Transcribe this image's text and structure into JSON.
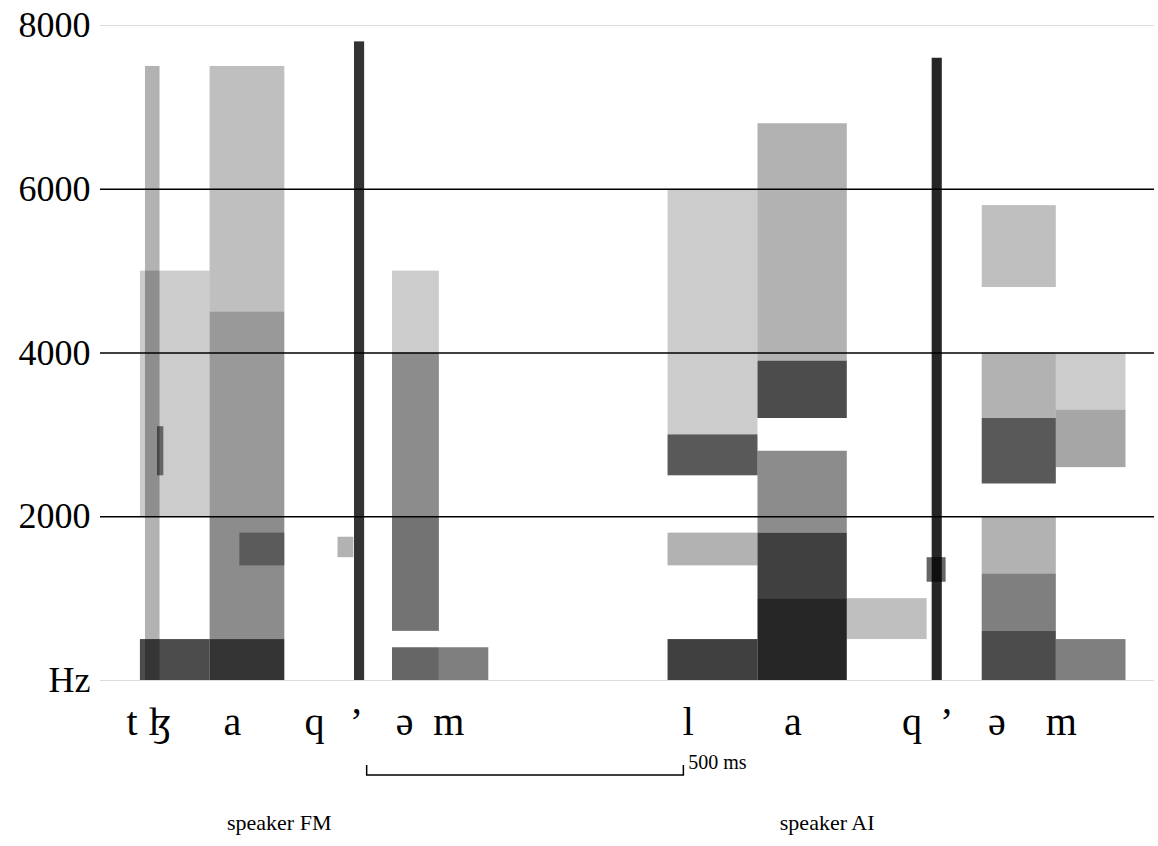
{
  "chart_data": {
    "type": "spectrogram",
    "color": "#000000",
    "xlim": [
      0,
      1664
    ],
    "ylim": [
      0,
      8000
    ],
    "yticks": [
      {
        "value": 0,
        "label": "Hz"
      },
      2000,
      4000,
      6000,
      8000
    ],
    "grid": true,
    "tick_labels": "y",
    "cells": [
      {
        "t0": 71,
        "t1": 94,
        "f0": 0,
        "f1": 7500,
        "level": 0.3
      },
      {
        "t0": 90,
        "t1": 100,
        "f0": 2500,
        "f1": 3100,
        "level": 0.5
      },
      {
        "t0": 63,
        "t1": 173,
        "f0": 0,
        "f1": 500,
        "level": 0.7
      },
      {
        "t0": 63,
        "t1": 173,
        "f0": 2000,
        "f1": 5000,
        "level": 0.2
      },
      {
        "t0": 173,
        "t1": 291,
        "f0": 0,
        "f1": 500,
        "level": 0.8
      },
      {
        "t0": 173,
        "t1": 291,
        "f0": 500,
        "f1": 2000,
        "level": 0.45
      },
      {
        "t0": 220,
        "t1": 291,
        "f0": 1400,
        "f1": 1800,
        "level": 0.35
      },
      {
        "t0": 173,
        "t1": 291,
        "f0": 2000,
        "f1": 4500,
        "level": 0.4
      },
      {
        "t0": 173,
        "t1": 291,
        "f0": 4500,
        "f1": 7500,
        "level": 0.25
      },
      {
        "t0": 401,
        "t1": 417,
        "f0": 0,
        "f1": 7800,
        "level": 0.8
      },
      {
        "t0": 375,
        "t1": 400,
        "f0": 1500,
        "f1": 1750,
        "level": 0.3
      },
      {
        "t0": 461,
        "t1": 535,
        "f0": 0,
        "f1": 400,
        "level": 0.6
      },
      {
        "t0": 461,
        "t1": 535,
        "f0": 600,
        "f1": 2000,
        "level": 0.55
      },
      {
        "t0": 461,
        "t1": 535,
        "f0": 2000,
        "f1": 4000,
        "level": 0.45
      },
      {
        "t0": 461,
        "t1": 535,
        "f0": 4000,
        "f1": 5000,
        "level": 0.2
      },
      {
        "t0": 535,
        "t1": 613,
        "f0": 0,
        "f1": 400,
        "level": 0.5
      },
      {
        "t0": 896,
        "t1": 1038,
        "f0": 0,
        "f1": 500,
        "level": 0.75
      },
      {
        "t0": 896,
        "t1": 1038,
        "f0": 1400,
        "f1": 1800,
        "level": 0.3
      },
      {
        "t0": 896,
        "t1": 1038,
        "f0": 2500,
        "f1": 3000,
        "level": 0.65
      },
      {
        "t0": 896,
        "t1": 1038,
        "f0": 3000,
        "f1": 6000,
        "level": 0.2
      },
      {
        "t0": 1038,
        "t1": 1179,
        "f0": 0,
        "f1": 1000,
        "level": 0.85
      },
      {
        "t0": 1038,
        "t1": 1179,
        "f0": 1000,
        "f1": 1800,
        "level": 0.75
      },
      {
        "t0": 1038,
        "t1": 1179,
        "f0": 1800,
        "f1": 2800,
        "level": 0.45
      },
      {
        "t0": 1038,
        "t1": 1179,
        "f0": 3200,
        "f1": 3900,
        "level": 0.7
      },
      {
        "t0": 1038,
        "t1": 1179,
        "f0": 3900,
        "f1": 6800,
        "level": 0.3
      },
      {
        "t0": 1179,
        "t1": 1305,
        "f0": 500,
        "f1": 1000,
        "level": 0.25
      },
      {
        "t0": 1313,
        "t1": 1329,
        "f0": 0,
        "f1": 7600,
        "level": 0.85
      },
      {
        "t0": 1305,
        "t1": 1335,
        "f0": 1200,
        "f1": 1500,
        "level": 0.6
      },
      {
        "t0": 1392,
        "t1": 1509,
        "f0": 0,
        "f1": 600,
        "level": 0.7
      },
      {
        "t0": 1392,
        "t1": 1509,
        "f0": 600,
        "f1": 1300,
        "level": 0.5
      },
      {
        "t0": 1392,
        "t1": 1509,
        "f0": 1300,
        "f1": 2000,
        "level": 0.3
      },
      {
        "t0": 1392,
        "t1": 1509,
        "f0": 2400,
        "f1": 3200,
        "level": 0.65
      },
      {
        "t0": 1392,
        "t1": 1509,
        "f0": 3200,
        "f1": 4000,
        "level": 0.3
      },
      {
        "t0": 1392,
        "t1": 1509,
        "f0": 4800,
        "f1": 5800,
        "level": 0.25
      },
      {
        "t0": 1509,
        "t1": 1619,
        "f0": 0,
        "f1": 500,
        "level": 0.5
      },
      {
        "t0": 1509,
        "t1": 1619,
        "f0": 2600,
        "f1": 3300,
        "level": 0.35
      },
      {
        "t0": 1509,
        "t1": 1619,
        "f0": 3300,
        "f1": 4000,
        "level": 0.2
      }
    ],
    "segments": [
      {
        "label": "t",
        "time": 50
      },
      {
        "label": "ɮ",
        "time": 94
      },
      {
        "label": "a",
        "time": 208
      },
      {
        "label": "q",
        "time": 338
      },
      {
        "label": "’",
        "time": 404
      },
      {
        "label": "ə",
        "time": 480
      },
      {
        "label": "m",
        "time": 550
      },
      {
        "label": "l",
        "time": 928
      },
      {
        "label": "a",
        "time": 1093
      },
      {
        "label": "q",
        "time": 1281
      },
      {
        "label": "’",
        "time": 1336
      },
      {
        "label": "ə",
        "time": 1415
      },
      {
        "label": "m",
        "time": 1517
      }
    ],
    "scale_bar": {
      "start": 421,
      "end": 921,
      "label": "500 ms"
    },
    "speakers": [
      {
        "label": "speaker FM",
        "time": 283
      },
      {
        "label": "speaker AI",
        "time": 1148
      }
    ]
  }
}
